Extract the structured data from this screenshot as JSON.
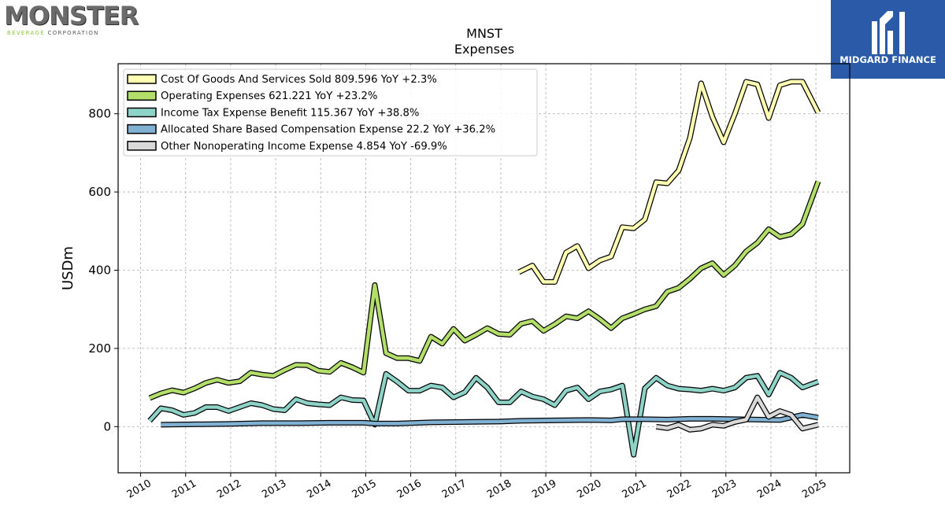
{
  "logos": {
    "left_name": "MONSTER",
    "left_sub_accent": "BEVERAGE",
    "left_sub_rest": "CORPORATION",
    "right_name": "MIDGARD FINANCE"
  },
  "chart_data": {
    "type": "line",
    "title": "MNST",
    "subtitle": "Expenses",
    "xlabel": "",
    "ylabel": "USDm",
    "xlim": [
      2009.5,
      2025.75
    ],
    "ylim": [
      -118,
      928
    ],
    "x_ticks": [
      2010,
      2011,
      2012,
      2013,
      2014,
      2015,
      2016,
      2017,
      2018,
      2019,
      2020,
      2021,
      2022,
      2023,
      2024,
      2025
    ],
    "y_ticks": [
      0,
      200,
      400,
      600,
      800
    ],
    "grid": true,
    "legend_position": "top-left",
    "series": [
      {
        "name": "Cost Of Goods And Services Sold",
        "legend": "Cost Of Goods And Services Sold  809.596 YoY +2.3%",
        "color": "#ffffb3",
        "points": [
          [
            2018.4,
            395
          ],
          [
            2018.7,
            412
          ],
          [
            2018.95,
            370
          ],
          [
            2019.2,
            370
          ],
          [
            2019.45,
            445
          ],
          [
            2019.7,
            462
          ],
          [
            2019.95,
            405
          ],
          [
            2020.2,
            425
          ],
          [
            2020.45,
            435
          ],
          [
            2020.7,
            510
          ],
          [
            2020.95,
            507
          ],
          [
            2021.2,
            530
          ],
          [
            2021.45,
            625
          ],
          [
            2021.7,
            622
          ],
          [
            2021.95,
            655
          ],
          [
            2022.2,
            738
          ],
          [
            2022.45,
            878
          ],
          [
            2022.7,
            792
          ],
          [
            2022.95,
            727
          ],
          [
            2023.2,
            800
          ],
          [
            2023.45,
            882
          ],
          [
            2023.7,
            875
          ],
          [
            2023.95,
            789
          ],
          [
            2024.2,
            873
          ],
          [
            2024.45,
            882
          ],
          [
            2024.7,
            882
          ],
          [
            2025.05,
            803
          ]
        ]
      },
      {
        "name": "Operating Expenses",
        "legend": "Operating Expenses  621.221 YoY +23.2%",
        "color": "#b3de69",
        "points": [
          [
            2010.2,
            73
          ],
          [
            2010.45,
            85
          ],
          [
            2010.7,
            93
          ],
          [
            2010.95,
            87
          ],
          [
            2011.2,
            98
          ],
          [
            2011.45,
            112
          ],
          [
            2011.7,
            120
          ],
          [
            2011.95,
            112
          ],
          [
            2012.2,
            116
          ],
          [
            2012.45,
            138
          ],
          [
            2012.7,
            133
          ],
          [
            2012.95,
            130
          ],
          [
            2013.2,
            145
          ],
          [
            2013.45,
            158
          ],
          [
            2013.7,
            157
          ],
          [
            2013.95,
            143
          ],
          [
            2014.2,
            140
          ],
          [
            2014.45,
            163
          ],
          [
            2014.7,
            152
          ],
          [
            2014.95,
            138
          ],
          [
            2015.2,
            362
          ],
          [
            2015.45,
            188
          ],
          [
            2015.7,
            175
          ],
          [
            2015.95,
            175
          ],
          [
            2016.2,
            168
          ],
          [
            2016.45,
            230
          ],
          [
            2016.7,
            212
          ],
          [
            2016.95,
            250
          ],
          [
            2017.2,
            220
          ],
          [
            2017.45,
            235
          ],
          [
            2017.7,
            252
          ],
          [
            2017.95,
            237
          ],
          [
            2018.2,
            235
          ],
          [
            2018.45,
            263
          ],
          [
            2018.7,
            270
          ],
          [
            2018.95,
            245
          ],
          [
            2019.2,
            262
          ],
          [
            2019.45,
            282
          ],
          [
            2019.7,
            277
          ],
          [
            2019.95,
            295
          ],
          [
            2020.2,
            275
          ],
          [
            2020.45,
            252
          ],
          [
            2020.7,
            277
          ],
          [
            2020.95,
            288
          ],
          [
            2021.2,
            300
          ],
          [
            2021.45,
            308
          ],
          [
            2021.7,
            345
          ],
          [
            2021.95,
            355
          ],
          [
            2022.2,
            378
          ],
          [
            2022.45,
            405
          ],
          [
            2022.7,
            418
          ],
          [
            2022.95,
            388
          ],
          [
            2023.2,
            412
          ],
          [
            2023.45,
            448
          ],
          [
            2023.7,
            470
          ],
          [
            2023.95,
            505
          ],
          [
            2024.2,
            485
          ],
          [
            2024.45,
            492
          ],
          [
            2024.7,
            518
          ],
          [
            2025.05,
            627
          ]
        ]
      },
      {
        "name": "Income Tax Expense Benefit",
        "legend": "Income Tax Expense Benefit  115.367 YoY +38.8%",
        "color": "#8dd3c7",
        "points": [
          [
            2010.2,
            15
          ],
          [
            2010.45,
            47
          ],
          [
            2010.7,
            42
          ],
          [
            2010.95,
            30
          ],
          [
            2011.2,
            35
          ],
          [
            2011.45,
            50
          ],
          [
            2011.7,
            50
          ],
          [
            2011.95,
            40
          ],
          [
            2012.2,
            50
          ],
          [
            2012.45,
            60
          ],
          [
            2012.7,
            55
          ],
          [
            2012.95,
            45
          ],
          [
            2013.2,
            42
          ],
          [
            2013.45,
            70
          ],
          [
            2013.7,
            60
          ],
          [
            2013.95,
            57
          ],
          [
            2014.2,
            55
          ],
          [
            2014.45,
            75
          ],
          [
            2014.7,
            68
          ],
          [
            2014.95,
            67
          ],
          [
            2015.2,
            5
          ],
          [
            2015.45,
            135
          ],
          [
            2015.7,
            115
          ],
          [
            2015.95,
            92
          ],
          [
            2016.2,
            92
          ],
          [
            2016.45,
            105
          ],
          [
            2016.7,
            100
          ],
          [
            2016.95,
            75
          ],
          [
            2017.2,
            88
          ],
          [
            2017.45,
            125
          ],
          [
            2017.7,
            100
          ],
          [
            2017.95,
            62
          ],
          [
            2018.2,
            62
          ],
          [
            2018.45,
            90
          ],
          [
            2018.7,
            77
          ],
          [
            2018.95,
            70
          ],
          [
            2019.2,
            55
          ],
          [
            2019.45,
            92
          ],
          [
            2019.7,
            100
          ],
          [
            2019.95,
            70
          ],
          [
            2020.2,
            90
          ],
          [
            2020.45,
            95
          ],
          [
            2020.7,
            105
          ],
          [
            2020.95,
            -72
          ],
          [
            2021.2,
            98
          ],
          [
            2021.45,
            125
          ],
          [
            2021.7,
            105
          ],
          [
            2021.95,
            97
          ],
          [
            2022.2,
            95
          ],
          [
            2022.45,
            92
          ],
          [
            2022.7,
            97
          ],
          [
            2022.95,
            92
          ],
          [
            2023.2,
            100
          ],
          [
            2023.45,
            125
          ],
          [
            2023.7,
            130
          ],
          [
            2023.95,
            82
          ],
          [
            2024.2,
            138
          ],
          [
            2024.45,
            125
          ],
          [
            2024.7,
            100
          ],
          [
            2025.05,
            115
          ]
        ]
      },
      {
        "name": "Allocated Share Based Compensation Expense",
        "legend": "Allocated Share Based Compensation Expense  22.2 YoY +36.2%",
        "color": "#80b1d3",
        "points": [
          [
            2010.45,
            5
          ],
          [
            2011.2,
            6
          ],
          [
            2011.95,
            7
          ],
          [
            2012.7,
            9
          ],
          [
            2013.45,
            9
          ],
          [
            2014.2,
            10
          ],
          [
            2014.95,
            10
          ],
          [
            2015.2,
            8
          ],
          [
            2015.7,
            8
          ],
          [
            2016.45,
            11
          ],
          [
            2017.2,
            12
          ],
          [
            2017.95,
            13
          ],
          [
            2018.45,
            15
          ],
          [
            2019.2,
            16
          ],
          [
            2019.95,
            17
          ],
          [
            2020.45,
            16
          ],
          [
            2020.7,
            19
          ],
          [
            2021.2,
            19
          ],
          [
            2021.7,
            18
          ],
          [
            2022.2,
            20
          ],
          [
            2022.7,
            20
          ],
          [
            2023.2,
            19
          ],
          [
            2023.7,
            18
          ],
          [
            2024.2,
            17
          ],
          [
            2024.7,
            30
          ],
          [
            2025.05,
            23
          ]
        ]
      },
      {
        "name": "Other Nonoperating Income Expense",
        "legend": "Other Nonoperating Income Expense  4.854 YoY -69.9%",
        "color": "#d9d9d9",
        "points": [
          [
            2021.45,
            0
          ],
          [
            2021.7,
            -4
          ],
          [
            2021.95,
            5
          ],
          [
            2022.2,
            -8
          ],
          [
            2022.45,
            -5
          ],
          [
            2022.7,
            5
          ],
          [
            2022.95,
            2
          ],
          [
            2023.2,
            12
          ],
          [
            2023.45,
            18
          ],
          [
            2023.7,
            75
          ],
          [
            2023.95,
            25
          ],
          [
            2024.2,
            40
          ],
          [
            2024.45,
            30
          ],
          [
            2024.7,
            -5
          ],
          [
            2025.05,
            5
          ]
        ]
      }
    ]
  }
}
